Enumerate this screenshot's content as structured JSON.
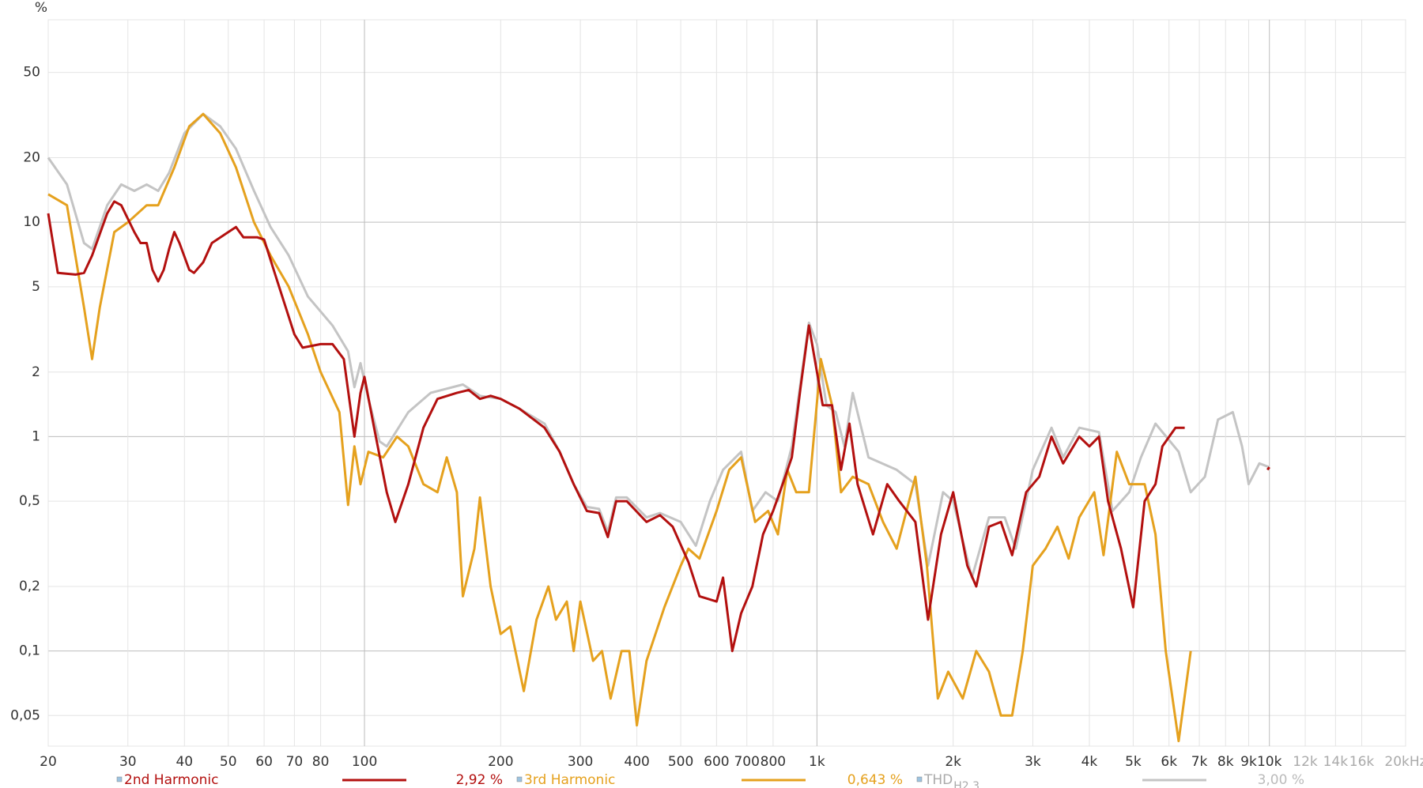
{
  "chart_data": {
    "type": "line",
    "y_unit": "%",
    "log_x": true,
    "log_y": true,
    "grid": true,
    "xlim": [
      20,
      20000
    ],
    "ylim": [
      0.036,
      88
    ],
    "xticks": [
      20,
      30,
      40,
      50,
      60,
      70,
      80,
      100,
      200,
      300,
      400,
      500,
      600,
      700,
      800,
      {
        "value": 1000,
        "label": "1k"
      },
      {
        "value": 2000,
        "label": "2k"
      },
      {
        "value": 3000,
        "label": "3k"
      },
      {
        "value": 4000,
        "label": "4k"
      },
      {
        "value": 5000,
        "label": "5k"
      },
      {
        "value": 6000,
        "label": "6k"
      },
      {
        "value": 7000,
        "label": "7k"
      },
      {
        "value": 8000,
        "label": "8k"
      },
      {
        "value": 9000,
        "label": "9k"
      },
      {
        "value": 10000,
        "label": "10k"
      },
      {
        "value": 12000,
        "label": "12k"
      },
      {
        "value": 14000,
        "label": "14k"
      },
      {
        "value": 16000,
        "label": "16k"
      },
      {
        "value": 20000,
        "label": "20kHz"
      }
    ],
    "yticks": [
      {
        "value": 0.05,
        "label": "0,05"
      },
      {
        "value": 0.1,
        "label": "0,1"
      },
      {
        "value": 0.2,
        "label": "0,2"
      },
      {
        "value": 0.5,
        "label": "0,5"
      },
      1,
      2,
      5,
      10,
      20,
      50
    ],
    "series": [
      {
        "name": "2nd Harmonic",
        "legend_value": "2,92 %",
        "color": "#b3100f",
        "x": [
          20,
          21,
          23,
          24,
          25,
          27,
          28,
          29,
          31,
          32,
          33,
          34,
          35,
          36,
          37,
          38,
          39,
          41,
          42,
          44,
          46,
          50,
          52,
          54,
          58,
          60,
          63,
          67,
          70,
          73,
          80,
          85,
          90,
          95,
          98,
          100,
          105,
          112,
          117,
          125,
          135,
          145,
          160,
          170,
          180,
          190,
          200,
          220,
          250,
          270,
          290,
          310,
          330,
          345,
          360,
          380,
          420,
          450,
          480,
          520,
          550,
          600,
          620,
          650,
          680,
          720,
          760,
          800,
          840,
          880,
          920,
          960,
          1000,
          1030,
          1080,
          1130,
          1180,
          1230,
          1330,
          1430,
          1520,
          1650,
          1760,
          1880,
          2000,
          2150,
          2250,
          2400,
          2550,
          2700,
          2900,
          3100,
          3300,
          3500,
          3800,
          4000,
          4200,
          4400,
          4700,
          5000,
          5300,
          5600,
          5800,
          6200,
          6500,
          8000,
          9900,
          10000
        ],
        "values": [
          11,
          5.8,
          5.7,
          5.8,
          7,
          11,
          12.5,
          12,
          9,
          8,
          8,
          6,
          5.3,
          6,
          7.5,
          9,
          8,
          6,
          5.8,
          6.5,
          8,
          9,
          9.5,
          8.5,
          8.5,
          8.3,
          6,
          4,
          3,
          2.6,
          2.7,
          2.7,
          2.3,
          1.0,
          1.6,
          1.9,
          1.1,
          0.55,
          0.4,
          0.6,
          1.1,
          1.5,
          1.6,
          1.65,
          1.5,
          1.55,
          1.5,
          1.35,
          1.1,
          0.85,
          0.6,
          0.45,
          0.44,
          0.34,
          0.5,
          0.5,
          0.4,
          0.43,
          0.38,
          0.26,
          0.18,
          0.17,
          0.22,
          0.1,
          0.15,
          0.2,
          0.35,
          0.45,
          0.6,
          0.8,
          1.7,
          3.3,
          2,
          1.4,
          1.4,
          0.7,
          1.15,
          0.6,
          0.35,
          0.6,
          0.5,
          0.4,
          0.14,
          0.35,
          0.55,
          0.25,
          0.2,
          0.38,
          0.4,
          0.28,
          0.55,
          0.65,
          1.0,
          0.75,
          1.0,
          0.9,
          1.0,
          0.5,
          0.3,
          0.16,
          0.5,
          0.6,
          0.9,
          1.1,
          1.1,
          null,
          0.7,
          0.72
        ]
      },
      {
        "name": "3rd Harmonic",
        "legend_value": "0,643 %",
        "color": "#e5a11e",
        "x": [
          20,
          22,
          24,
          25,
          26,
          28,
          30,
          33,
          35,
          38,
          41,
          44,
          48,
          52,
          57,
          62,
          68,
          75,
          80,
          88,
          92,
          95,
          98,
          102,
          110,
          118,
          125,
          135,
          145,
          152,
          160,
          165,
          175,
          180,
          190,
          200,
          210,
          225,
          240,
          255,
          265,
          280,
          290,
          300,
          320,
          335,
          350,
          370,
          385,
          400,
          420,
          460,
          500,
          520,
          550,
          600,
          640,
          680,
          730,
          780,
          820,
          860,
          900,
          960,
          1020,
          1080,
          1130,
          1200,
          1300,
          1400,
          1500,
          1650,
          1750,
          1850,
          1950,
          2100,
          2250,
          2400,
          2550,
          2700,
          2850,
          3000,
          3200,
          3400,
          3600,
          3800,
          4100,
          4300,
          4600,
          4900,
          5300,
          5600,
          5900,
          6300,
          6700
        ],
        "values": [
          13.5,
          12,
          4,
          2.3,
          4,
          9,
          10,
          12,
          12,
          18,
          28,
          32,
          26,
          18,
          10,
          7,
          5,
          3,
          2,
          1.3,
          0.48,
          0.9,
          0.6,
          0.85,
          0.8,
          1.0,
          0.9,
          0.6,
          0.55,
          0.8,
          0.55,
          0.18,
          0.3,
          0.52,
          0.2,
          0.12,
          0.13,
          0.065,
          0.14,
          0.2,
          0.14,
          0.17,
          0.1,
          0.17,
          0.09,
          0.1,
          0.06,
          0.1,
          0.1,
          0.045,
          0.09,
          0.16,
          0.25,
          0.3,
          0.27,
          0.45,
          0.7,
          0.8,
          0.4,
          0.45,
          0.35,
          0.7,
          0.55,
          0.55,
          2.3,
          1.4,
          0.55,
          0.65,
          0.6,
          0.4,
          0.3,
          0.65,
          0.25,
          0.06,
          0.08,
          0.06,
          0.1,
          0.08,
          0.05,
          0.05,
          0.1,
          0.25,
          0.3,
          0.38,
          0.27,
          0.42,
          0.55,
          0.28,
          0.85,
          0.6,
          0.6,
          0.35,
          0.1,
          0.038,
          0.1
        ]
      },
      {
        "name": "THD",
        "name_subscript": "H2,3",
        "legend_value": "3,00 %",
        "color": "#c4c4c4",
        "x": [
          20,
          22,
          24,
          25,
          27,
          29,
          31,
          33,
          35,
          37,
          40,
          44,
          48,
          52,
          57,
          62,
          68,
          75,
          85,
          92,
          95,
          98,
          102,
          108,
          112,
          125,
          140,
          165,
          180,
          200,
          220,
          250,
          270,
          290,
          310,
          330,
          345,
          360,
          380,
          420,
          450,
          500,
          540,
          580,
          620,
          680,
          720,
          770,
          820,
          880,
          920,
          960,
          1000,
          1050,
          1100,
          1150,
          1200,
          1300,
          1500,
          1650,
          1760,
          1900,
          2000,
          2200,
          2400,
          2600,
          2750,
          3000,
          3300,
          3500,
          3800,
          4200,
          4500,
          4900,
          5200,
          5600,
          6300,
          6700,
          7200,
          7700,
          8300,
          8700,
          9000,
          9500,
          10000
        ],
        "values": [
          20,
          15,
          8,
          7.5,
          12,
          15,
          14,
          15,
          14,
          17,
          26,
          32,
          28,
          22,
          14,
          9.5,
          7,
          4.5,
          3.3,
          2.5,
          1.7,
          2.2,
          1.5,
          0.95,
          0.9,
          1.3,
          1.6,
          1.75,
          1.55,
          1.5,
          1.35,
          1.15,
          0.85,
          0.6,
          0.47,
          0.46,
          0.36,
          0.52,
          0.52,
          0.42,
          0.44,
          0.4,
          0.31,
          0.5,
          0.7,
          0.85,
          0.45,
          0.55,
          0.5,
          0.9,
          1.8,
          3.4,
          2.7,
          1.4,
          1.3,
          0.9,
          1.6,
          0.8,
          0.7,
          0.6,
          0.25,
          0.55,
          0.5,
          0.22,
          0.42,
          0.42,
          0.3,
          0.7,
          1.1,
          0.8,
          1.1,
          1.05,
          0.45,
          0.55,
          0.8,
          1.15,
          0.85,
          0.55,
          0.65,
          1.2,
          1.3,
          0.9,
          0.6,
          0.75,
          0.72
        ]
      }
    ]
  }
}
